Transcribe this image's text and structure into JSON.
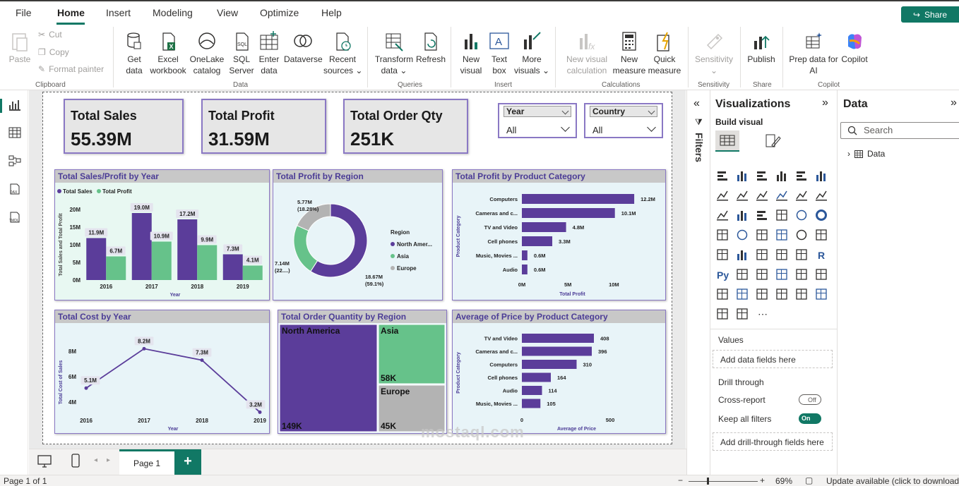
{
  "menu": {
    "items": [
      "File",
      "Home",
      "Insert",
      "Modeling",
      "View",
      "Optimize",
      "Help"
    ],
    "share": "Share"
  },
  "ribbon": {
    "clipboard": {
      "paste": "Paste",
      "cut": "Cut",
      "copy": "Copy",
      "format_painter": "Format painter",
      "group": "Clipboard"
    },
    "data": {
      "get_data": [
        "Get",
        "data"
      ],
      "excel": [
        "Excel",
        "workbook"
      ],
      "onelake": [
        "OneLake",
        "catalog"
      ],
      "sql": [
        "SQL",
        "Server"
      ],
      "enter": [
        "Enter",
        "data"
      ],
      "dataverse": "Dataverse",
      "recent": [
        "Recent",
        "sources"
      ],
      "group": "Data"
    },
    "queries": {
      "transform": [
        "Transform",
        "data"
      ],
      "refresh": "Refresh",
      "group": "Queries"
    },
    "insert": {
      "new_visual": [
        "New",
        "visual"
      ],
      "text_box": [
        "Text",
        "box"
      ],
      "more_visuals": [
        "More",
        "visuals"
      ],
      "group": "Insert"
    },
    "calculations": {
      "new_visual_calc": [
        "New visual",
        "calculation"
      ],
      "new_measure": [
        "New",
        "measure"
      ],
      "quick_measure": [
        "Quick",
        "measure"
      ],
      "group": "Calculations"
    },
    "sensitivity": {
      "label": "Sensitivity",
      "group": "Sensitivity"
    },
    "share": {
      "publish": "Publish",
      "group": "Share"
    },
    "copilot": {
      "prep": [
        "Prep data for",
        "AI"
      ],
      "copilot": "Copilot",
      "group": "Copilot"
    }
  },
  "kpis": [
    {
      "title": "Total Sales",
      "value": "55.39M"
    },
    {
      "title": "Total Profit",
      "value": "31.59M"
    },
    {
      "title": "Total Order Qty",
      "value": "251K"
    }
  ],
  "slicers": [
    {
      "title": "Year",
      "value": "All"
    },
    {
      "title": "Country",
      "value": "All"
    }
  ],
  "chart_data": [
    {
      "type": "bar",
      "title": "Total Sales/Profit by Year",
      "categories": [
        "2016",
        "2017",
        "2018",
        "2019"
      ],
      "series": [
        {
          "name": "Total Sales",
          "values": [
            11.9,
            19.0,
            17.2,
            7.3
          ],
          "labels": [
            "11.9M",
            "19.0M",
            "17.2M",
            "7.3M"
          ],
          "color": "#5b3d9a"
        },
        {
          "name": "Total Profit",
          "values": [
            6.7,
            10.9,
            9.9,
            4.1
          ],
          "labels": [
            "6.7M",
            "10.9M",
            "9.9M",
            "4.1M"
          ],
          "color": "#66c28a"
        }
      ],
      "xlabel": "Year",
      "ylabel": "Total Sales and Total Profit",
      "ylim": [
        0,
        20
      ],
      "yticks": [
        "20M",
        "15M",
        "10M",
        "5M",
        "0M"
      ]
    },
    {
      "type": "pie",
      "title": "Total Profit by Region",
      "legend_title": "Region",
      "slices": [
        {
          "name": "North Amer...",
          "value": 18.67,
          "label": [
            "18.67M",
            "(59.1%)"
          ],
          "color": "#5b3d9a"
        },
        {
          "name": "Asia",
          "value": 7.14,
          "label": [
            "7.14M",
            "(22....)"
          ],
          "color": "#66c28a"
        },
        {
          "name": "Europe",
          "value": 5.77,
          "label": [
            "5.77M",
            "(18.28%)"
          ],
          "color": "#b3b3b3"
        }
      ]
    },
    {
      "type": "bar",
      "orientation": "horizontal",
      "title": "Total Profit by Product Category",
      "categories": [
        "Computers",
        "Cameras and c...",
        "TV and Video",
        "Cell phones",
        "Music, Movies ...",
        "Audio"
      ],
      "values": [
        12.2,
        10.1,
        4.8,
        3.3,
        0.6,
        0.6
      ],
      "labels": [
        "12.2M",
        "10.1M",
        "4.8M",
        "3.3M",
        "0.6M",
        "0.6M"
      ],
      "xlabel": "Total Profit",
      "ylabel": "Product Category",
      "xlim": [
        0,
        12.5
      ],
      "xticks": [
        "0M",
        "5M",
        "10M"
      ]
    },
    {
      "type": "line",
      "title": "Total Cost by Year",
      "categories": [
        "2016",
        "2017",
        "2018",
        "2019"
      ],
      "values": [
        5.1,
        8.2,
        7.3,
        3.2
      ],
      "labels": [
        "5.1M",
        "8.2M",
        "7.3M",
        "3.2M"
      ],
      "xlabel": "Year",
      "ylabel": "Total Cost of Sales",
      "yticks": [
        "8M",
        "6M",
        "4M"
      ]
    },
    {
      "type": "treemap",
      "title": "Total Order Quantity by Region",
      "items": [
        {
          "name": "North America",
          "label": "149K",
          "color": "#5b3d9a"
        },
        {
          "name": "Asia",
          "label": "58K",
          "color": "#66c28a"
        },
        {
          "name": "Europe",
          "label": "45K",
          "color": "#b3b3b3"
        }
      ]
    },
    {
      "type": "bar",
      "orientation": "horizontal",
      "title": "Average of Price by Product Category",
      "categories": [
        "TV and Video",
        "Cameras and c...",
        "Computers",
        "Cell phones",
        "Audio",
        "Music, Movies ..."
      ],
      "values": [
        408,
        396,
        310,
        164,
        114,
        105
      ],
      "labels": [
        "408",
        "396",
        "310",
        "164",
        "114",
        "105"
      ],
      "xlabel": "Average of Price",
      "ylabel": "Product Category",
      "xlim": [
        0,
        700
      ],
      "xticks": [
        "0",
        "500"
      ]
    }
  ],
  "filters_label": "Filters",
  "viz_pane": {
    "title": "Visualizations",
    "build": "Build visual",
    "values": "Values",
    "add_fields": "Add data fields here",
    "drill": "Drill through",
    "cross_report": "Cross-report",
    "cross_state": "Off",
    "keep_filters": "Keep all filters",
    "keep_state": "On",
    "add_drill": "Add drill-through fields here"
  },
  "data_pane": {
    "title": "Data",
    "search": "Search",
    "tree_item": "Data"
  },
  "pages": {
    "tab": "Page 1",
    "add": "+"
  },
  "status": {
    "page": "Page 1 of 1",
    "zoom": "69%",
    "update": "Update available (click to download"
  },
  "watermark": "mostaql.com"
}
